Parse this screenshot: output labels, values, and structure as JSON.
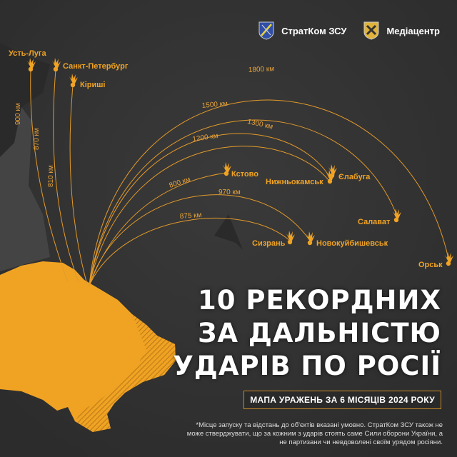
{
  "header": {
    "logo1_label": "СтратКом ЗСУ",
    "logo2_label": "Медіацентр"
  },
  "colors": {
    "accent": "#f0a323",
    "background": "#353535",
    "land": "#3a3a3a",
    "ukraine": "#f0a323",
    "logo1": "#2f4fa8",
    "logo2": "#e0b23a"
  },
  "targets": [
    {
      "name": "Усть-Луга",
      "distance": "900 км"
    },
    {
      "name": "Санкт-Петербург",
      "distance": "870 км"
    },
    {
      "name": "Кіриші",
      "distance": "810 км"
    },
    {
      "name": "Кстово",
      "distance": "800 км"
    },
    {
      "name": "Нижньокамськ",
      "distance": "1200 км"
    },
    {
      "name": "Єлабуга",
      "distance": "1300 км"
    },
    {
      "name": "Салават",
      "distance": "1500 км"
    },
    {
      "name": "Сизрань",
      "distance": "875 км"
    },
    {
      "name": "Новокуйбишевськ",
      "distance": "970 км"
    },
    {
      "name": "Орськ",
      "distance": "1800 км"
    }
  ],
  "title": {
    "line1": "10 РЕКОРДНИХ",
    "line2": "ЗА ДАЛЬНІСТЮ",
    "line3": "УДАРІВ ПО РОСІЇ"
  },
  "subtitle": "МАПА УРАЖЕНЬ ЗА 6 МІСЯЦІВ 2024 РОКУ",
  "footnote": "*Місце запуску та відстань до об'єктів вказані умовно. СтратКом ЗСУ також не може стверджувати, що за кожним з ударів стоять саме Сили оборони України, а не партизани чи невдоволені своїм урядом росіяни."
}
